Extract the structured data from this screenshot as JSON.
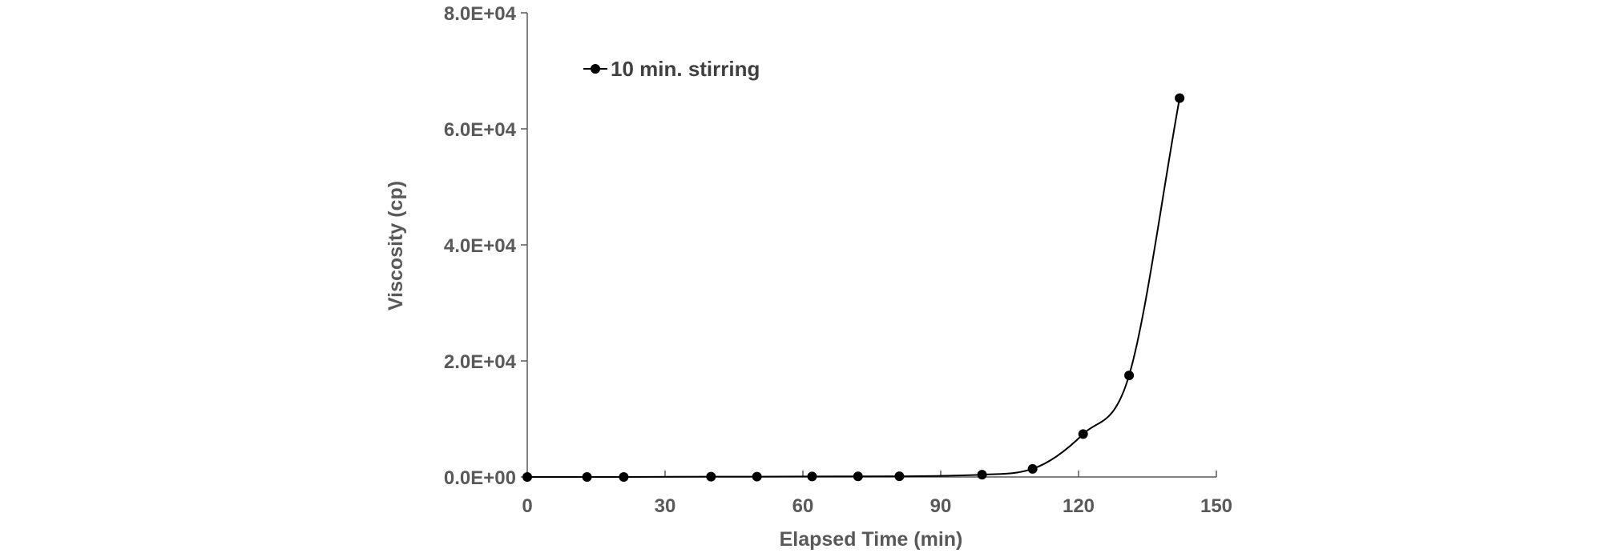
{
  "chart_data": {
    "type": "scatter",
    "title": "",
    "xlabel": "Elapsed Time (min)",
    "ylabel": "Viscosity  (cp)",
    "xlim": [
      0,
      150
    ],
    "ylim": [
      0,
      80000
    ],
    "x_ticks": [
      0,
      30,
      60,
      90,
      120,
      150
    ],
    "y_ticks": [
      0,
      20000,
      40000,
      60000,
      80000
    ],
    "x_tick_labels": [
      "0",
      "30",
      "60",
      "90",
      "120",
      "150"
    ],
    "y_tick_labels": [
      "0.0E+00",
      "2.0E+04",
      "4.0E+04",
      "6.0E+04",
      "8.0E+04"
    ],
    "grid": false,
    "legend_position": "top-left",
    "line_style": "smooth",
    "color": "#000000",
    "series": [
      {
        "name": "10 min. stirring",
        "x": [
          0,
          13,
          21,
          40,
          50,
          62,
          72,
          81,
          99,
          110,
          121,
          131,
          142
        ],
        "y": [
          0,
          0,
          0,
          50,
          60,
          80,
          100,
          120,
          400,
          1400,
          7400,
          17500,
          65300
        ]
      }
    ]
  }
}
